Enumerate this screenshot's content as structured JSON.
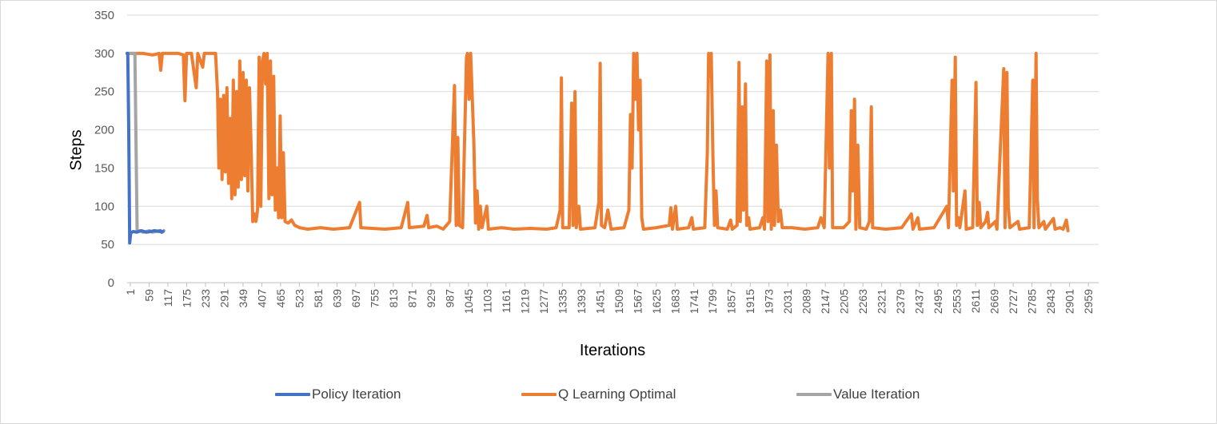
{
  "chart_data": {
    "type": "line",
    "xlabel": "Iterations",
    "ylabel": "Steps",
    "ylim": [
      0,
      350
    ],
    "yticks": [
      0,
      50,
      100,
      150,
      200,
      250,
      300,
      350
    ],
    "xlim": [
      1,
      3010
    ],
    "xtick_labels": [
      "1",
      "59",
      "117",
      "175",
      "233",
      "291",
      "349",
      "407",
      "465",
      "523",
      "581",
      "639",
      "697",
      "755",
      "813",
      "871",
      "929",
      "987",
      "1045",
      "1103",
      "1161",
      "1219",
      "1277",
      "1335",
      "1393",
      "1451",
      "1509",
      "1567",
      "1625",
      "1683",
      "1741",
      "1799",
      "1857",
      "1915",
      "1973",
      "2031",
      "2089",
      "2147",
      "2205",
      "2263",
      "2321",
      "2379",
      "2437",
      "2495",
      "2553",
      "2611",
      "2669",
      "2727",
      "2785",
      "2843",
      "2901",
      "2959"
    ],
    "grid": "horizontal",
    "legend_position": "bottom",
    "series": [
      {
        "name": "Policy Iteration",
        "color": "#4472C4",
        "points": [
          [
            1,
            300
          ],
          [
            3,
            300
          ],
          [
            6,
            200
          ],
          [
            9,
            52
          ],
          [
            12,
            65
          ],
          [
            16,
            66
          ],
          [
            20,
            67
          ],
          [
            30,
            66
          ],
          [
            45,
            68
          ],
          [
            60,
            66
          ],
          [
            75,
            67
          ],
          [
            85,
            68
          ],
          [
            100,
            67
          ],
          [
            104,
            68
          ],
          [
            108,
            66
          ],
          [
            112,
            67
          ]
        ]
      },
      {
        "name": "Q Learning Optimal",
        "color": "#ED7D31",
        "points": [
          [
            1,
            300
          ],
          [
            50,
            300
          ],
          [
            80,
            298
          ],
          [
            100,
            300
          ],
          [
            105,
            278
          ],
          [
            110,
            300
          ],
          [
            160,
            300
          ],
          [
            175,
            298
          ],
          [
            180,
            238
          ],
          [
            185,
            300
          ],
          [
            200,
            300
          ],
          [
            215,
            255
          ],
          [
            220,
            300
          ],
          [
            235,
            282
          ],
          [
            240,
            300
          ],
          [
            275,
            300
          ],
          [
            281,
            248
          ],
          [
            285,
            150
          ],
          [
            290,
            240
          ],
          [
            295,
            135
          ],
          [
            300,
            245
          ],
          [
            305,
            145
          ],
          [
            310,
            255
          ],
          [
            315,
            130
          ],
          [
            320,
            215
          ],
          [
            325,
            110
          ],
          [
            330,
            265
          ],
          [
            335,
            115
          ],
          [
            340,
            250
          ],
          [
            345,
            125
          ],
          [
            350,
            290
          ],
          [
            355,
            135
          ],
          [
            360,
            275
          ],
          [
            365,
            140
          ],
          [
            370,
            265
          ],
          [
            375,
            120
          ],
          [
            380,
            255
          ],
          [
            385,
            175
          ],
          [
            390,
            80
          ],
          [
            395,
            90
          ],
          [
            400,
            80
          ],
          [
            405,
            95
          ],
          [
            410,
            295
          ],
          [
            415,
            100
          ],
          [
            420,
            290
          ],
          [
            425,
            300
          ],
          [
            430,
            260
          ],
          [
            435,
            300
          ],
          [
            440,
            110
          ],
          [
            445,
            290
          ],
          [
            450,
            115
          ],
          [
            455,
            270
          ],
          [
            460,
            95
          ],
          [
            465,
            150
          ],
          [
            470,
            85
          ],
          [
            475,
            218
          ],
          [
            480,
            85
          ],
          [
            485,
            170
          ],
          [
            490,
            80
          ],
          [
            500,
            78
          ],
          [
            510,
            82
          ],
          [
            520,
            75
          ],
          [
            535,
            72
          ],
          [
            560,
            70
          ],
          [
            600,
            72
          ],
          [
            640,
            70
          ],
          [
            690,
            72
          ],
          [
            721,
            105
          ],
          [
            725,
            72
          ],
          [
            760,
            71
          ],
          [
            800,
            70
          ],
          [
            850,
            72
          ],
          [
            870,
            105
          ],
          [
            875,
            72
          ],
          [
            920,
            74
          ],
          [
            930,
            88
          ],
          [
            935,
            72
          ],
          [
            960,
            74
          ],
          [
            980,
            70
          ],
          [
            1000,
            80
          ],
          [
            1015,
            258
          ],
          [
            1020,
            75
          ],
          [
            1025,
            190
          ],
          [
            1030,
            75
          ],
          [
            1040,
            72
          ],
          [
            1052,
            295
          ],
          [
            1055,
            300
          ],
          [
            1060,
            240
          ],
          [
            1065,
            300
          ],
          [
            1070,
            240
          ],
          [
            1075,
            180
          ],
          [
            1080,
            78
          ],
          [
            1085,
            120
          ],
          [
            1090,
            70
          ],
          [
            1095,
            100
          ],
          [
            1100,
            72
          ],
          [
            1115,
            100
          ],
          [
            1120,
            70
          ],
          [
            1160,
            72
          ],
          [
            1200,
            70
          ],
          [
            1250,
            71
          ],
          [
            1300,
            70
          ],
          [
            1330,
            72
          ],
          [
            1342,
            95
          ],
          [
            1346,
            268
          ],
          [
            1350,
            72
          ],
          [
            1370,
            72
          ],
          [
            1378,
            235
          ],
          [
            1382,
            75
          ],
          [
            1388,
            250
          ],
          [
            1392,
            72
          ],
          [
            1400,
            100
          ],
          [
            1405,
            70
          ],
          [
            1450,
            72
          ],
          [
            1462,
            105
          ],
          [
            1466,
            287
          ],
          [
            1470,
            75
          ],
          [
            1480,
            72
          ],
          [
            1490,
            95
          ],
          [
            1500,
            70
          ],
          [
            1540,
            72
          ],
          [
            1555,
            95
          ],
          [
            1560,
            220
          ],
          [
            1565,
            150
          ],
          [
            1570,
            300
          ],
          [
            1575,
            240
          ],
          [
            1580,
            300
          ],
          [
            1585,
            200
          ],
          [
            1590,
            265
          ],
          [
            1595,
            85
          ],
          [
            1600,
            70
          ],
          [
            1640,
            72
          ],
          [
            1680,
            75
          ],
          [
            1685,
            98
          ],
          [
            1690,
            70
          ],
          [
            1700,
            100
          ],
          [
            1705,
            70
          ],
          [
            1740,
            72
          ],
          [
            1750,
            85
          ],
          [
            1755,
            70
          ],
          [
            1790,
            72
          ],
          [
            1798,
            170
          ],
          [
            1802,
            300
          ],
          [
            1806,
            270
          ],
          [
            1810,
            300
          ],
          [
            1815,
            170
          ],
          [
            1820,
            75
          ],
          [
            1825,
            120
          ],
          [
            1830,
            72
          ],
          [
            1860,
            70
          ],
          [
            1870,
            82
          ],
          [
            1875,
            70
          ],
          [
            1890,
            75
          ],
          [
            1896,
            288
          ],
          [
            1900,
            80
          ],
          [
            1906,
            230
          ],
          [
            1910,
            95
          ],
          [
            1916,
            260
          ],
          [
            1920,
            75
          ],
          [
            1926,
            85
          ],
          [
            1930,
            70
          ],
          [
            1960,
            72
          ],
          [
            1970,
            85
          ],
          [
            1975,
            70
          ],
          [
            1982,
            290
          ],
          [
            1986,
            80
          ],
          [
            1992,
            298
          ],
          [
            1996,
            70
          ],
          [
            2002,
            225
          ],
          [
            2006,
            75
          ],
          [
            2012,
            180
          ],
          [
            2018,
            80
          ],
          [
            2024,
            95
          ],
          [
            2030,
            72
          ],
          [
            2060,
            72
          ],
          [
            2100,
            70
          ],
          [
            2140,
            72
          ],
          [
            2150,
            85
          ],
          [
            2160,
            72
          ],
          [
            2172,
            300
          ],
          [
            2176,
            150
          ],
          [
            2182,
            300
          ],
          [
            2186,
            72
          ],
          [
            2220,
            72
          ],
          [
            2238,
            80
          ],
          [
            2244,
            225
          ],
          [
            2248,
            120
          ],
          [
            2254,
            240
          ],
          [
            2258,
            70
          ],
          [
            2264,
            180
          ],
          [
            2270,
            72
          ],
          [
            2290,
            70
          ],
          [
            2300,
            80
          ],
          [
            2306,
            230
          ],
          [
            2310,
            72
          ],
          [
            2350,
            70
          ],
          [
            2400,
            72
          ],
          [
            2430,
            90
          ],
          [
            2435,
            70
          ],
          [
            2450,
            85
          ],
          [
            2455,
            70
          ],
          [
            2500,
            72
          ],
          [
            2540,
            100
          ],
          [
            2545,
            72
          ],
          [
            2556,
            265
          ],
          [
            2560,
            120
          ],
          [
            2566,
            295
          ],
          [
            2570,
            75
          ],
          [
            2576,
            85
          ],
          [
            2580,
            72
          ],
          [
            2596,
            120
          ],
          [
            2600,
            70
          ],
          [
            2620,
            72
          ],
          [
            2630,
            262
          ],
          [
            2634,
            75
          ],
          [
            2640,
            105
          ],
          [
            2645,
            72
          ],
          [
            2660,
            80
          ],
          [
            2666,
            92
          ],
          [
            2670,
            72
          ],
          [
            2690,
            80
          ],
          [
            2695,
            70
          ],
          [
            2716,
            280
          ],
          [
            2720,
            72
          ],
          [
            2726,
            275
          ],
          [
            2730,
            100
          ],
          [
            2735,
            72
          ],
          [
            2760,
            80
          ],
          [
            2765,
            70
          ],
          [
            2795,
            72
          ],
          [
            2806,
            265
          ],
          [
            2810,
            72
          ],
          [
            2816,
            300
          ],
          [
            2820,
            110
          ],
          [
            2825,
            72
          ],
          [
            2840,
            80
          ],
          [
            2845,
            70
          ],
          [
            2870,
            84
          ],
          [
            2875,
            70
          ],
          [
            2890,
            72
          ],
          [
            2900,
            70
          ],
          [
            2910,
            82
          ],
          [
            2915,
            68
          ]
        ]
      },
      {
        "name": "Value Iteration",
        "color": "#A5A5A5",
        "points": [
          [
            1,
            300
          ],
          [
            25,
            300
          ],
          [
            32,
            67
          ],
          [
            40,
            68
          ],
          [
            50,
            66
          ],
          [
            60,
            67
          ],
          [
            70,
            68
          ],
          [
            80,
            66
          ],
          [
            90,
            67
          ],
          [
            100,
            68
          ],
          [
            108,
            66
          ],
          [
            115,
            68
          ]
        ]
      }
    ]
  }
}
